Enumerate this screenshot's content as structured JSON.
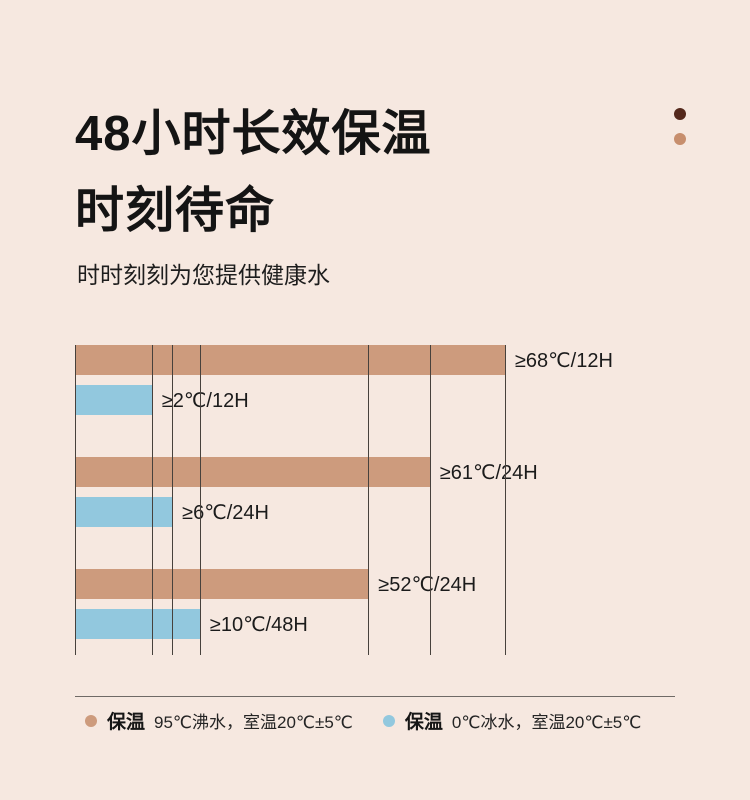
{
  "page": {
    "background": "#f6e8e0"
  },
  "header": {
    "title_line1": "48小时长效保温",
    "title_line2": "时刻待命",
    "subtitle": "时时刻刻为您提供健康水"
  },
  "decor": {
    "dot_dark_color": "#54281c",
    "dot_tan_color": "#c78e6d"
  },
  "chart_data": {
    "type": "bar",
    "orientation": "horizontal",
    "title": "48小时长效保温 时刻待命",
    "grid": true,
    "series_colors": {
      "hot": "#cd9b7d",
      "cold": "#92c8de"
    },
    "series": [
      {
        "key": "hot",
        "name": "保温 95℃沸水，室温20℃±5℃",
        "color": "#cd9b7d",
        "points": [
          {
            "label": "≥68℃/12H",
            "temp_c": 68,
            "hours": 12
          },
          {
            "label": "≥61℃/24H",
            "temp_c": 61,
            "hours": 24
          },
          {
            "label": "≥52℃/24H",
            "temp_c": 52,
            "hours": 24
          }
        ]
      },
      {
        "key": "cold",
        "name": "保温 0℃冰水，室温20℃±5℃",
        "color": "#92c8de",
        "points": [
          {
            "label": "≥2℃/12H",
            "temp_c": 2,
            "hours": 12
          },
          {
            "label": "≥6℃/24H",
            "temp_c": 6,
            "hours": 24
          },
          {
            "label": "≥10℃/48H",
            "temp_c": 10,
            "hours": 48
          }
        ]
      }
    ],
    "groups": [
      {
        "bars": [
          {
            "series": "hot",
            "label": "≥68℃/12H",
            "width_pct": 76.1
          },
          {
            "series": "cold",
            "label": "≥2℃/12H",
            "width_pct": 13.6
          }
        ]
      },
      {
        "bars": [
          {
            "series": "hot",
            "label": "≥61℃/24H",
            "width_pct": 62.8
          },
          {
            "series": "cold",
            "label": "≥6℃/24H",
            "width_pct": 17.2
          }
        ]
      },
      {
        "bars": [
          {
            "series": "hot",
            "label": "≥52℃/24H",
            "width_pct": 51.9
          },
          {
            "series": "cold",
            "label": "≥10℃/48H",
            "width_pct": 22.1
          }
        ]
      }
    ],
    "gridlines_pct": [
      0,
      13.6,
      17.2,
      22.1,
      51.9,
      62.8,
      76.1
    ]
  },
  "legend": {
    "items": [
      {
        "dot_color": "#cd9b7d",
        "title": "保温",
        "desc": "95℃沸水，室温20℃±5℃"
      },
      {
        "dot_color": "#92c8de",
        "title": "保温",
        "desc": "0℃冰水，室温20℃±5℃"
      }
    ]
  }
}
